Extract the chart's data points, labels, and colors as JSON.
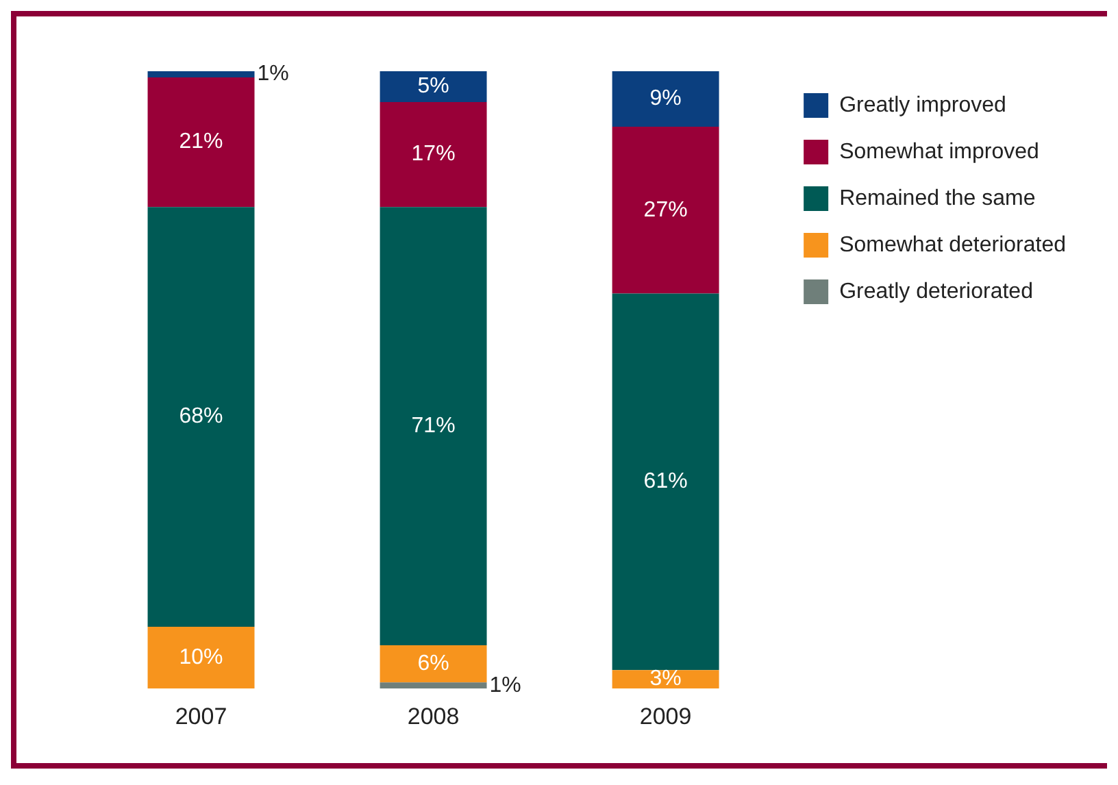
{
  "chart_data": {
    "type": "bar",
    "stacked": true,
    "categories": [
      "2007",
      "2008",
      "2009"
    ],
    "series": [
      {
        "name": "Greatly deteriorated",
        "color": "#6f7f7a",
        "values": [
          null,
          1,
          null
        ],
        "value_labels": [
          null,
          "1%",
          null
        ]
      },
      {
        "name": "Somewhat deteriorated",
        "color": "#f7941d",
        "values": [
          10,
          6,
          3
        ],
        "value_labels": [
          "10%",
          "6%",
          "3%"
        ]
      },
      {
        "name": "Remained the same",
        "color": "#005a55",
        "values": [
          68,
          71,
          61
        ],
        "value_labels": [
          "68%",
          "71%",
          "61%"
        ]
      },
      {
        "name": "Somewhat improved",
        "color": "#990038",
        "values": [
          21,
          17,
          27
        ],
        "value_labels": [
          "21%",
          "17%",
          "27%"
        ]
      },
      {
        "name": "Greatly improved",
        "color": "#0b3f7f",
        "values": [
          1,
          5,
          9
        ],
        "value_labels": [
          "1%",
          "5%",
          "9%"
        ]
      }
    ],
    "legend": "right",
    "grid": false
  }
}
